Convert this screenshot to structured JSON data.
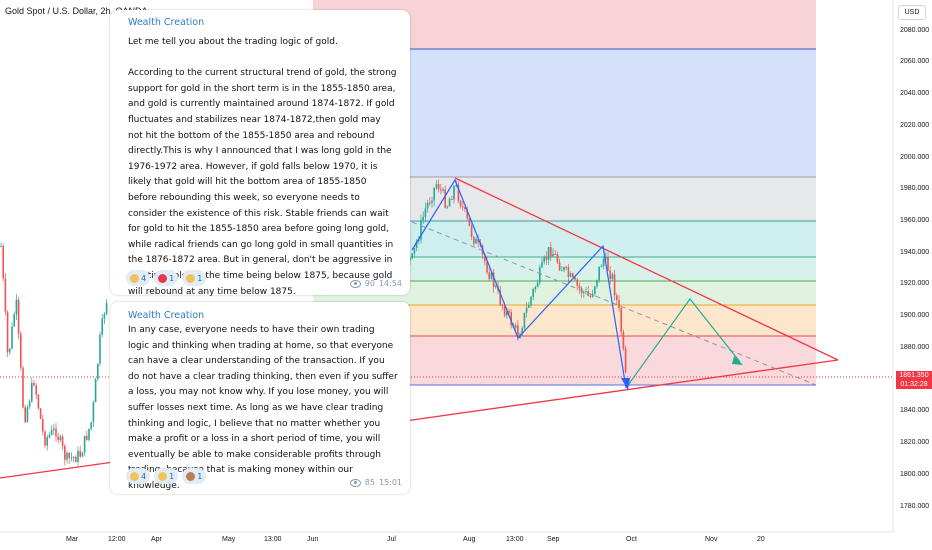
{
  "symbol_title": "Gold Spot / U.S. Dollar, 2h, OANDA",
  "currency": "USD",
  "price_axis": [
    "2080.000",
    "2060.000",
    "2040.000",
    "2020.000",
    "2000.000",
    "1980.000",
    "1960.000",
    "1940.000",
    "1920.000",
    "1900.000",
    "1880.000",
    "1860.000",
    "1840.000",
    "1820.000",
    "1800.000",
    "1780.000"
  ],
  "current_price": {
    "value": "1861.350",
    "countdown": "01:32:28"
  },
  "time_axis": [
    "Mar",
    "12:00",
    "Apr",
    "May",
    "13:00",
    "Jun",
    "Jul",
    "Aug",
    "13:00",
    "Sep",
    "Oct",
    "Nov",
    "20"
  ],
  "colors": {
    "up": "#26a69a",
    "down": "#ef5350",
    "trendline": "#f23645",
    "pattern": "#2962ff",
    "projection": "#22ab94",
    "author": "#2b7dbf"
  },
  "messages": [
    {
      "author": "Wealth Creation",
      "text": "Let me tell you about the trading logic of gold.\n\nAccording to the current structural trend of gold, the strong support for gold in the short term is in the 1855-1850 area, and gold is currently maintained around 1874-1872. If gold fluctuates and stabilizes near 1874-1872,then gold may not hit the bottom of the 1855-1850 area and rebound directly.This is why I announced that I was long gold in the 1976-1972 area. However, if gold falls below 1970, it is likely that gold will hit the bottom area of 1855-1850 before rebounding this week, so everyone needs to consider the existence of this risk. Stable friends can wait for gold to hit the 1855-1850 area before going long gold, while radical friends can go long gold in small quantities in the 1876-1872 area. But in general, don't be aggressive in shorting gold for the time being below 1875, because gold will rebound at any time below 1875.",
      "reactions": [
        {
          "icon": "thumbs-up",
          "count": "4"
        },
        {
          "icon": "heart",
          "count": "1"
        },
        {
          "icon": "pray",
          "count": "1"
        }
      ],
      "views": "90",
      "time": "14:54"
    },
    {
      "author": "Wealth Creation",
      "text": "In any case, everyone needs to have their own trading logic and thinking when trading at home, so that everyone can have a clear understanding of the transaction. If you do not have a clear trading thinking, then even if you suffer a loss, you may not know why. If you lose money, you will suffer losses next time. As long as we have clear trading thinking and logic, I believe that no matter whether you make a profit or a loss in a short period of time, you will eventually be able to make considerable profits through trading, because that is making money within our knowledge.",
      "reactions": [
        {
          "icon": "clap",
          "count": "4"
        },
        {
          "icon": "thumbs-up",
          "count": "1"
        },
        {
          "icon": "monkey",
          "count": "1"
        }
      ],
      "views": "85",
      "time": "15:01"
    }
  ]
}
